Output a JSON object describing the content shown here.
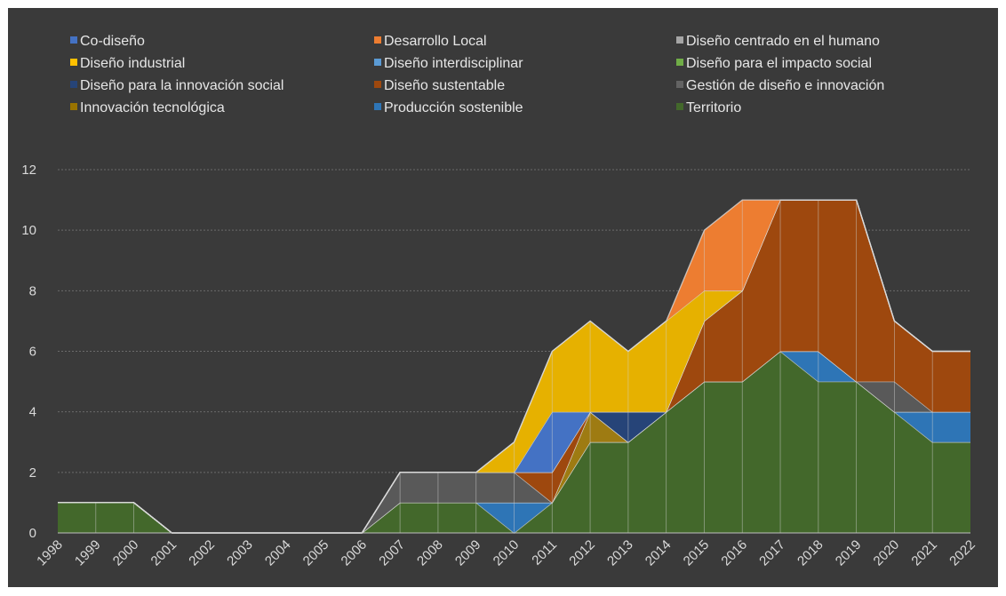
{
  "chart_data": {
    "type": "area",
    "title": "",
    "xlabel": "",
    "ylabel": "",
    "ylim": [
      0,
      12
    ],
    "yticks": [
      "0",
      "2",
      "4",
      "6",
      "8",
      "10",
      "12"
    ],
    "grid": true,
    "legend_position": "top",
    "x": [
      "1998",
      "1999",
      "2000",
      "2001",
      "2002",
      "2003",
      "2004",
      "2005",
      "2006",
      "2007",
      "2008",
      "2009",
      "2010",
      "2011",
      "2012",
      "2013",
      "2014",
      "2015",
      "2016",
      "2017",
      "2018",
      "2019",
      "2020",
      "2021",
      "2022"
    ],
    "series": [
      {
        "name": "Territorio",
        "color": "#43682b",
        "values": [
          1,
          1,
          1,
          0,
          0,
          0,
          0,
          0,
          0,
          1,
          1,
          1,
          0,
          1,
          3,
          3,
          4,
          5,
          5,
          6,
          5,
          5,
          4,
          3,
          3
        ]
      },
      {
        "name": "Producción sostenible",
        "color": "#2e75b6",
        "values": [
          0,
          0,
          0,
          0,
          0,
          0,
          0,
          0,
          0,
          0,
          0,
          0,
          1,
          0,
          0,
          0,
          0,
          0,
          0,
          0,
          1,
          0,
          0,
          1,
          1
        ]
      },
      {
        "name": "Innovación tecnológica",
        "color": "#9e7b12",
        "values": [
          0,
          0,
          0,
          0,
          0,
          0,
          0,
          0,
          0,
          0,
          0,
          0,
          0,
          0,
          1,
          0,
          0,
          0,
          0,
          0,
          0,
          0,
          0,
          0,
          0
        ]
      },
      {
        "name": "Gestión de diseño e innovación",
        "color": "#595959",
        "values": [
          0,
          0,
          0,
          0,
          0,
          0,
          0,
          0,
          0,
          1,
          1,
          1,
          1,
          0,
          0,
          0,
          0,
          0,
          0,
          0,
          0,
          0,
          1,
          0,
          0
        ]
      },
      {
        "name": "Diseño sustentable",
        "color": "#9e480e",
        "values": [
          0,
          0,
          0,
          0,
          0,
          0,
          0,
          0,
          0,
          0,
          0,
          0,
          0,
          1,
          0,
          0,
          0,
          2,
          3,
          5,
          5,
          6,
          2,
          2,
          2
        ]
      },
      {
        "name": "Diseño para la innovación social",
        "color": "#264478",
        "values": [
          0,
          0,
          0,
          0,
          0,
          0,
          0,
          0,
          0,
          0,
          0,
          0,
          0,
          0,
          0,
          1,
          0,
          0,
          0,
          0,
          0,
          0,
          0,
          0,
          0
        ]
      },
      {
        "name": "Diseño para el impacto social",
        "color": "#70ad47",
        "values": [
          0,
          0,
          0,
          0,
          0,
          0,
          0,
          0,
          0,
          0,
          0,
          0,
          0,
          0,
          0,
          0,
          0,
          0,
          0,
          0,
          0,
          0,
          0,
          0,
          0
        ]
      },
      {
        "name": "Diseño interdisciplinar",
        "color": "#4472c4",
        "values": [
          0,
          0,
          0,
          0,
          0,
          0,
          0,
          0,
          0,
          0,
          0,
          0,
          0,
          2,
          0,
          0,
          0,
          0,
          0,
          0,
          0,
          0,
          0,
          0,
          0
        ]
      },
      {
        "name": "Diseño industrial",
        "color": "#e6b100",
        "values": [
          0,
          0,
          0,
          0,
          0,
          0,
          0,
          0,
          0,
          0,
          0,
          0,
          1,
          2,
          3,
          2,
          3,
          1,
          0,
          0,
          0,
          0,
          0,
          0,
          0
        ]
      },
      {
        "name": "Diseño centrado en el humano",
        "color": "#a5a5a5",
        "values": [
          0,
          0,
          0,
          0,
          0,
          0,
          0,
          0,
          0,
          0,
          0,
          0,
          0,
          0,
          0,
          0,
          0,
          0,
          0,
          0,
          0,
          0,
          0,
          0,
          0
        ]
      },
      {
        "name": "Desarrollo Local",
        "color": "#ed7d31",
        "values": [
          0,
          0,
          0,
          0,
          0,
          0,
          0,
          0,
          0,
          0,
          0,
          0,
          0,
          0,
          0,
          0,
          0,
          2,
          3,
          0,
          0,
          0,
          0,
          0,
          0
        ]
      },
      {
        "name": "Co-diseño",
        "color": "#4472c4",
        "values": [
          0,
          0,
          0,
          0,
          0,
          0,
          0,
          0,
          0,
          0,
          0,
          0,
          0,
          0,
          0,
          0,
          0,
          0,
          0,
          0,
          0,
          0,
          0,
          0,
          0
        ]
      }
    ]
  },
  "legend": [
    {
      "label": "Co-diseño",
      "color": "#4472c4"
    },
    {
      "label": "Desarrollo Local",
      "color": "#ed7d31"
    },
    {
      "label": "Diseño centrado en el humano",
      "color": "#a5a5a5"
    },
    {
      "label": "Diseño industrial",
      "color": "#ffc000"
    },
    {
      "label": "Diseño interdisciplinar",
      "color": "#5b9bd5"
    },
    {
      "label": "Diseño para el impacto social",
      "color": "#70ad47"
    },
    {
      "label": "Diseño para la innovación social",
      "color": "#264478"
    },
    {
      "label": "Diseño sustentable",
      "color": "#9e480e"
    },
    {
      "label": "Gestión de diseño e innovación",
      "color": "#636363"
    },
    {
      "label": "Innovación tecnológica",
      "color": "#997300"
    },
    {
      "label": "Producción sostenible",
      "color": "#2e75b6"
    },
    {
      "label": "Territorio",
      "color": "#43682b"
    }
  ],
  "colors": {
    "background": "#3a3a3a",
    "grid": "#6a6a6a",
    "text": "#d9d9d9",
    "area_edge": "#d9d9d9"
  }
}
